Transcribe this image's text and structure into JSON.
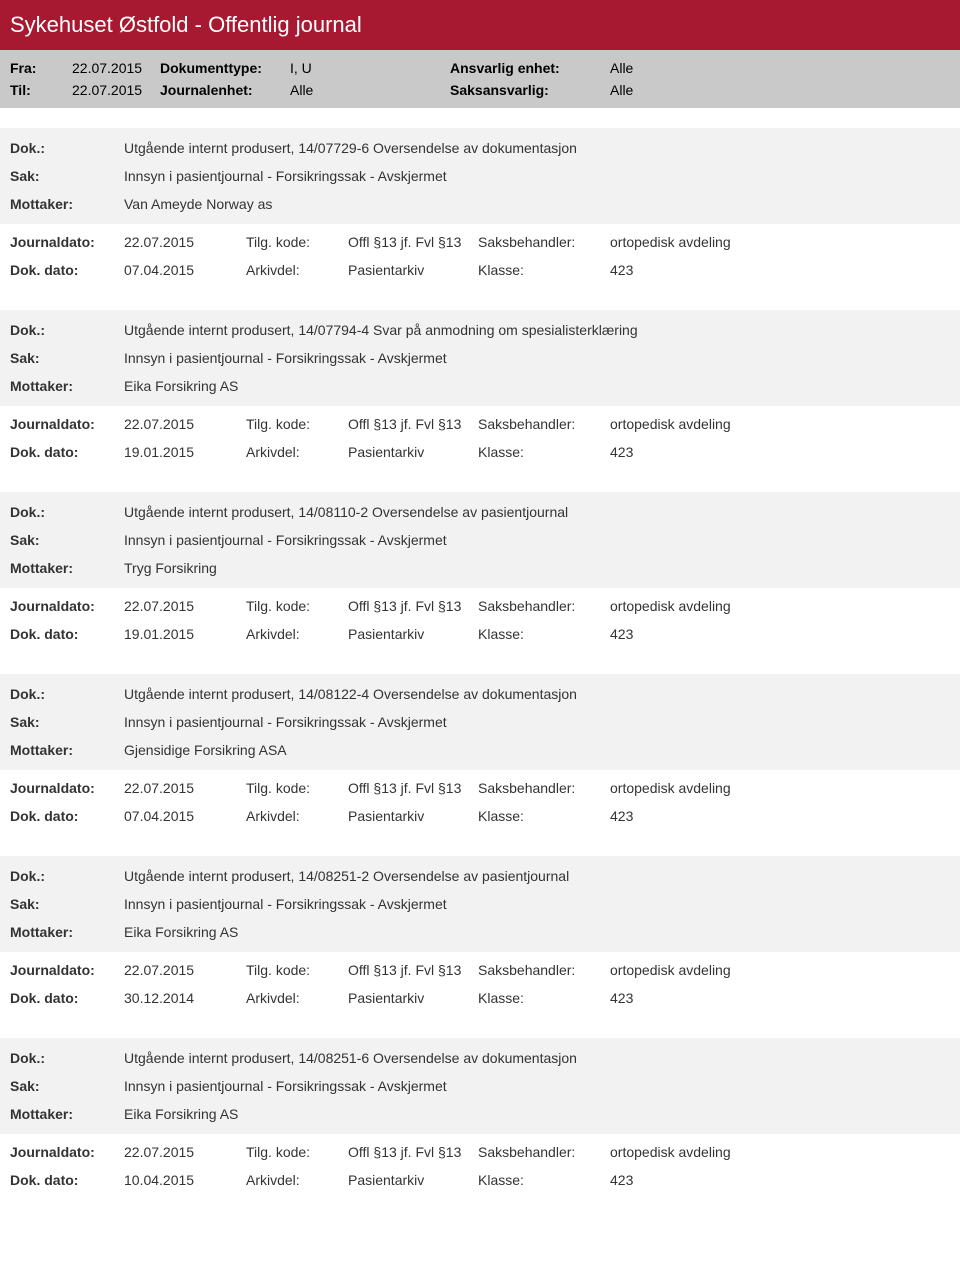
{
  "header": {
    "title": "Sykehuset Østfold - Offentlig journal"
  },
  "subheader": {
    "fra_label": "Fra:",
    "fra_value": "22.07.2015",
    "til_label": "Til:",
    "til_value": "22.07.2015",
    "doktype_label": "Dokumenttype:",
    "doktype_value": "I, U",
    "journalenhet_label": "Journalenhet:",
    "journalenhet_value": "Alle",
    "ansvarlig_label": "Ansvarlig enhet:",
    "ansvarlig_value": "Alle",
    "saksansvarlig_label": "Saksansvarlig:",
    "saksansvarlig_value": "Alle"
  },
  "labels": {
    "dok": "Dok.:",
    "sak": "Sak:",
    "mottaker": "Mottaker:",
    "journaldato": "Journaldato:",
    "tilgkode": "Tilg. kode:",
    "saksbehandler": "Saksbehandler:",
    "dokdato": "Dok. dato:",
    "arkivdel": "Arkivdel:",
    "klasse": "Klasse:"
  },
  "common": {
    "journaldato": "22.07.2015",
    "tilgkode": "Offl §13 jf. Fvl §13",
    "saksbehandler": "ortopedisk avdeling",
    "arkivdel": "Pasientarkiv",
    "klasse": "423",
    "sak_text": "Innsyn i pasientjournal - Forsikringssak - Avskjermet"
  },
  "entries": [
    {
      "dok": "Utgående internt produsert, 14/07729-6 Oversendelse av dokumentasjon",
      "mottaker": "Van Ameyde Norway as",
      "dokdato": "07.04.2015"
    },
    {
      "dok": "Utgående internt produsert, 14/07794-4 Svar på anmodning om spesialisterklæring",
      "mottaker": "Eika Forsikring AS",
      "dokdato": "19.01.2015"
    },
    {
      "dok": "Utgående internt produsert, 14/08110-2 Oversendelse av pasientjournal",
      "mottaker": "Tryg Forsikring",
      "dokdato": "19.01.2015"
    },
    {
      "dok": "Utgående internt produsert, 14/08122-4 Oversendelse av dokumentasjon",
      "mottaker": "Gjensidige Forsikring ASA",
      "dokdato": "07.04.2015"
    },
    {
      "dok": "Utgående internt produsert, 14/08251-2 Oversendelse av pasientjournal",
      "mottaker": "Eika Forsikring AS",
      "dokdato": "30.12.2014"
    },
    {
      "dok": "Utgående internt produsert, 14/08251-6 Oversendelse av dokumentasjon",
      "mottaker": "Eika Forsikring AS",
      "dokdato": "10.04.2015"
    }
  ]
}
